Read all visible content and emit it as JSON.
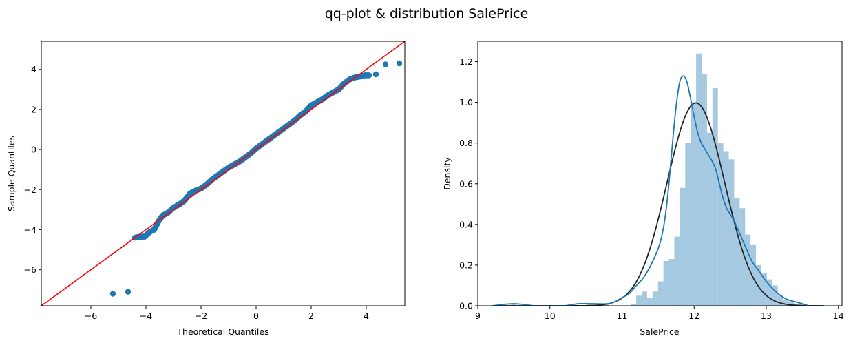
{
  "figure": {
    "suptitle": "qq-plot & distribution SalePrice"
  },
  "chart_data": [
    {
      "type": "scatter",
      "xlabel": "Theoretical Quantiles",
      "ylabel": "Sample Quantiles",
      "xlim": [
        -7.8,
        5.4
      ],
      "ylim": [
        -7.8,
        5.4
      ],
      "xticks": [
        -6,
        -4,
        -2,
        0,
        2,
        4
      ],
      "yticks": [
        -6,
        -4,
        -2,
        0,
        2,
        4
      ],
      "tick_labels_x": [
        "−6",
        "−4",
        "−2",
        "0",
        "2",
        "4"
      ],
      "tick_labels_y": [
        "−6",
        "−4",
        "−2",
        "0",
        "2",
        "4"
      ],
      "grid": false,
      "point_color": "#1f77b4",
      "line_color": "#ff0000",
      "reference_line": {
        "slope": 1,
        "intercept": 0
      },
      "points_x": [
        -5.2,
        -4.65,
        -4.4,
        -4.2,
        -4.05,
        -3.85,
        -3.7,
        -3.55,
        -3.4,
        -3.2,
        -3.0,
        -2.8,
        -2.6,
        -2.4,
        -2.2,
        -2.0,
        -1.8,
        -1.6,
        -1.4,
        -1.2,
        -1.0,
        -0.8,
        -0.6,
        -0.4,
        -0.2,
        0.0,
        0.2,
        0.4,
        0.6,
        0.8,
        1.0,
        1.2,
        1.4,
        1.6,
        1.8,
        2.0,
        2.2,
        2.4,
        2.6,
        2.8,
        3.0,
        3.2,
        3.4,
        3.6,
        3.8,
        3.95,
        4.1,
        4.35,
        4.7,
        5.2
      ],
      "points_y": [
        -7.2,
        -7.1,
        -4.4,
        -4.35,
        -4.35,
        -4.1,
        -4.0,
        -3.6,
        -3.3,
        -3.15,
        -2.9,
        -2.75,
        -2.55,
        -2.2,
        -2.05,
        -1.95,
        -1.75,
        -1.5,
        -1.3,
        -1.1,
        -0.9,
        -0.75,
        -0.6,
        -0.4,
        -0.2,
        0.05,
        0.25,
        0.45,
        0.65,
        0.85,
        1.05,
        1.25,
        1.45,
        1.7,
        1.9,
        2.2,
        2.35,
        2.5,
        2.7,
        2.85,
        3.0,
        3.3,
        3.5,
        3.6,
        3.65,
        3.7,
        3.7,
        3.75,
        4.25,
        4.3
      ]
    },
    {
      "type": "bar",
      "xlabel": "SalePrice",
      "ylabel": "Density",
      "xlim": [
        9.0,
        14.05
      ],
      "ylim": [
        0.0,
        1.3
      ],
      "xticks": [
        9,
        10,
        11,
        12,
        13,
        14
      ],
      "yticks": [
        0.0,
        0.2,
        0.4,
        0.6,
        0.8,
        1.0,
        1.2
      ],
      "tick_labels_x": [
        "9",
        "10",
        "11",
        "12",
        "13",
        "14"
      ],
      "tick_labels_y": [
        "0.0",
        "0.2",
        "0.4",
        "0.6",
        "0.8",
        "1.0",
        "1.2"
      ],
      "grid": false,
      "hist_color": "#1f77b4",
      "kde_color": "#1f77b4",
      "fit_color": "#262626",
      "bins": {
        "start": 9.46,
        "width": 0.0755,
        "densities": [
          0.01,
          0,
          0,
          0,
          0,
          0,
          0,
          0,
          0,
          0,
          0,
          0,
          0,
          0,
          0.01,
          0.01,
          0.01,
          0.01,
          0,
          0,
          0,
          0,
          0.01,
          0.05,
          0.07,
          0.04,
          0.07,
          0.12,
          0.22,
          0.23,
          0.34,
          0.58,
          0.8,
          1.0,
          1.24,
          1.14,
          0.85,
          1.07,
          0.8,
          0.76,
          0.72,
          0.53,
          0.48,
          0.35,
          0.3,
          0.2,
          0.16,
          0.13,
          0.1,
          0.05,
          0.03,
          0.02,
          0.01,
          0.01
        ]
      },
      "kde": {
        "x": [
          9.2,
          9.5,
          9.8,
          10.0,
          10.2,
          10.4,
          10.6,
          10.8,
          10.9,
          11.0,
          11.1,
          11.2,
          11.3,
          11.4,
          11.5,
          11.55,
          11.6,
          11.65,
          11.7,
          11.75,
          11.8,
          11.85,
          11.9,
          11.95,
          12.0,
          12.05,
          12.1,
          12.15,
          12.2,
          12.25,
          12.3,
          12.35,
          12.4,
          12.45,
          12.5,
          12.55,
          12.6,
          12.7,
          12.8,
          12.9,
          13.0,
          13.1,
          13.2,
          13.3,
          13.4,
          13.5,
          13.6,
          13.8
        ],
        "y": [
          0.0,
          0.01,
          0.0,
          0.0,
          0.0,
          0.01,
          0.01,
          0.01,
          0.02,
          0.04,
          0.06,
          0.1,
          0.14,
          0.2,
          0.28,
          0.34,
          0.44,
          0.6,
          0.8,
          0.98,
          1.1,
          1.13,
          1.1,
          1.02,
          0.93,
          0.85,
          0.8,
          0.77,
          0.74,
          0.71,
          0.67,
          0.6,
          0.53,
          0.48,
          0.45,
          0.42,
          0.38,
          0.3,
          0.22,
          0.17,
          0.12,
          0.08,
          0.05,
          0.03,
          0.02,
          0.01,
          0.0,
          0.0
        ]
      },
      "normal_fit": {
        "mu": 12.024,
        "sigma": 0.4
      }
    }
  ]
}
